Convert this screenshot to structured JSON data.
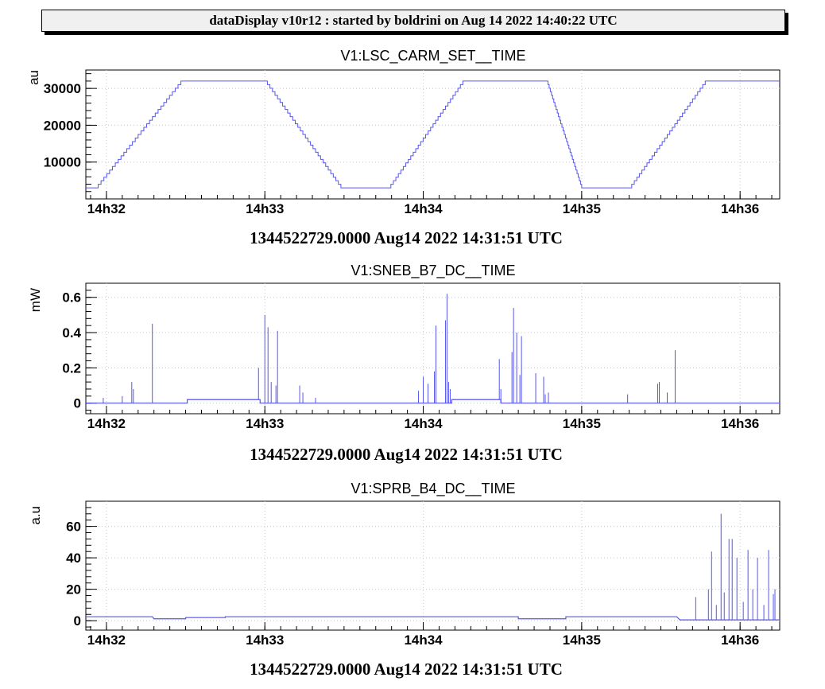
{
  "header": {
    "title": "dataDisplay v10r12 : started by boldrini on Aug 14 2022 14:40:22 UTC"
  },
  "style": {
    "series_color": "#5555ee",
    "grid_color": "#c8c8c8",
    "frame_color": "#000000"
  },
  "chart_data": [
    {
      "type": "line",
      "title": "V1:LSC_CARM_SET__TIME",
      "ylabel": "au",
      "footer": "1344522729.0000 Aug14 2022 14:31:51 UTC",
      "x_ticks": [
        "14h32",
        "14h33",
        "14h34",
        "14h35",
        "14h36"
      ],
      "xlim_minutes_after_14h31": [
        0.87,
        5.25
      ],
      "ylim": [
        0,
        35000
      ],
      "y_ticks": [
        10000,
        20000,
        30000
      ],
      "y_tick_labels": [
        "10000",
        "20000",
        "30000"
      ],
      "grid": true,
      "series": [
        {
          "x": [
            0.87,
            0.93,
            1.47,
            2.0,
            2.48,
            2.78,
            3.25,
            3.78,
            4.0,
            4.3,
            4.78,
            5.25
          ],
          "y": [
            3000,
            3000,
            32000,
            32000,
            3000,
            3000,
            32000,
            32000,
            3000,
            3000,
            32000,
            32000
          ]
        }
      ]
    },
    {
      "type": "line",
      "title": "V1:SNEB_B7_DC__TIME",
      "ylabel": "mW",
      "footer": "1344522729.0000 Aug14 2022 14:31:51 UTC",
      "x_ticks": [
        "14h32",
        "14h33",
        "14h34",
        "14h35",
        "14h36"
      ],
      "xlim_minutes_after_14h31": [
        0.87,
        5.25
      ],
      "ylim": [
        -0.06,
        0.68
      ],
      "y_ticks": [
        0,
        0.2,
        0.4,
        0.6
      ],
      "y_tick_labels": [
        "0",
        "0.2",
        "0.4",
        "0.6"
      ],
      "grid": true,
      "series": [
        {
          "baseline": [
            [
              0.87,
              0.0
            ],
            [
              1.51,
              0.0
            ],
            [
              1.51,
              0.02
            ],
            [
              1.97,
              0.02
            ],
            [
              1.97,
              0.0
            ],
            [
              2.86,
              0.0
            ],
            [
              3.18,
              0.0
            ],
            [
              3.18,
              0.02
            ],
            [
              3.49,
              0.02
            ],
            [
              3.49,
              0.0
            ],
            [
              5.25,
              0.0
            ]
          ],
          "spikes_x": [
            0.98,
            1.1,
            1.16,
            1.17,
            1.29,
            1.96,
            2.0,
            2.02,
            2.04,
            2.07,
            2.08,
            2.22,
            2.24,
            2.32,
            2.97,
            3.0,
            3.03,
            3.07,
            3.08,
            3.14,
            3.15,
            3.16,
            3.17,
            3.48,
            3.49,
            3.56,
            3.57,
            3.59,
            3.61,
            3.62,
            3.71,
            3.76,
            3.77,
            3.79,
            4.29,
            4.48,
            4.49,
            4.54,
            4.59
          ],
          "spikes_y": [
            0.03,
            0.04,
            0.12,
            0.08,
            0.45,
            0.2,
            0.5,
            0.43,
            0.12,
            0.1,
            0.41,
            0.1,
            0.06,
            0.03,
            0.07,
            0.15,
            0.11,
            0.18,
            0.44,
            0.47,
            0.62,
            0.12,
            0.08,
            0.25,
            0.08,
            0.29,
            0.54,
            0.4,
            0.16,
            0.38,
            0.17,
            0.15,
            0.05,
            0.06,
            0.05,
            0.11,
            0.12,
            0.06,
            0.3
          ]
        }
      ]
    },
    {
      "type": "line",
      "title": "V1:SPRB_B4_DC__TIME",
      "ylabel": "a.u",
      "footer": "1344522729.0000 Aug14 2022 14:31:51 UTC",
      "x_ticks": [
        "14h32",
        "14h33",
        "14h34",
        "14h35",
        "14h36"
      ],
      "xlim_minutes_after_14h31": [
        0.87,
        5.25
      ],
      "ylim": [
        -6,
        76
      ],
      "y_ticks": [
        0,
        20,
        40,
        60
      ],
      "y_tick_labels": [
        "0",
        "20",
        "40",
        "60"
      ],
      "grid": true,
      "series": [
        {
          "baseline": [
            [
              0.87,
              2.5
            ],
            [
              1.29,
              2.5
            ],
            [
              1.3,
              1.2
            ],
            [
              1.5,
              1.2
            ],
            [
              1.5,
              2.0
            ],
            [
              1.75,
              2.0
            ],
            [
              1.75,
              2.5
            ],
            [
              3.6,
              2.5
            ],
            [
              3.6,
              1.2
            ],
            [
              3.9,
              1.2
            ],
            [
              3.9,
              2.5
            ],
            [
              4.6,
              2.5
            ],
            [
              4.62,
              0.5
            ],
            [
              5.25,
              0.5
            ]
          ],
          "spikes_x": [
            4.72,
            4.8,
            4.82,
            4.85,
            4.88,
            4.9,
            4.93,
            4.95,
            4.98,
            5.02,
            5.05,
            5.08,
            5.11,
            5.15,
            5.18,
            5.21,
            5.22
          ],
          "spikes_y": [
            15,
            20,
            44,
            10,
            68,
            18,
            52,
            52,
            40,
            12,
            45,
            20,
            40,
            10,
            45,
            17,
            20
          ]
        }
      ]
    }
  ]
}
